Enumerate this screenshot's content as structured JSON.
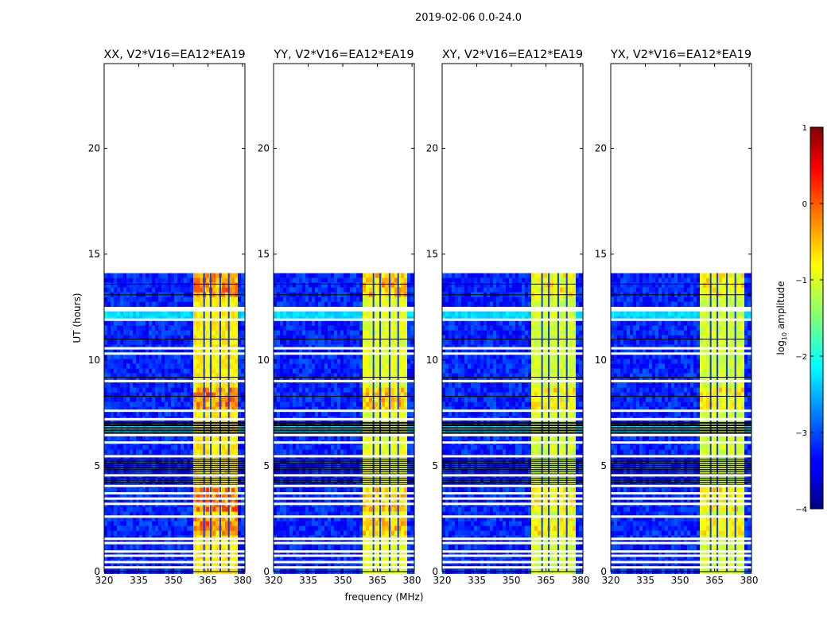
{
  "chart_data": {
    "type": "heatmap",
    "suptitle": "2019-02-06 0.0-24.0",
    "xlabel": "frequency (MHz)",
    "ylabel": "UT (hours)",
    "xlim": [
      320,
      381
    ],
    "ylim": [
      0,
      24
    ],
    "xticks": [
      320,
      335,
      350,
      365,
      380
    ],
    "yticks": [
      0,
      5,
      10,
      15,
      20
    ],
    "data_ut_range": [
      0,
      14.1
    ],
    "rfi_band_mhz": [
      358.5,
      377.5
    ],
    "rfi_channels_mhz": [
      363.3,
      366.2,
      370.3,
      374.0
    ],
    "flagged_ut_hours": [
      0.2,
      0.45,
      0.75,
      0.95,
      1.35,
      1.55,
      2.6,
      3.2,
      3.45,
      3.7,
      4.05,
      4.55,
      5.45,
      6.1,
      6.45,
      7.2,
      7.6,
      9.0,
      10.3,
      10.55,
      11.9,
      12.35,
      12.45
    ],
    "panels": [
      {
        "title": "XX, V2*V16=EA12*EA19",
        "band_level": -0.8,
        "hot_level": 0.1
      },
      {
        "title": "YY, V2*V16=EA12*EA19",
        "band_level": -1.0,
        "hot_level": -0.3
      },
      {
        "title": "XY, V2*V16=EA12*EA19",
        "band_level": -1.1,
        "hot_level": -0.6
      },
      {
        "title": "YX, V2*V16=EA12*EA19",
        "band_level": -1.1,
        "hot_level": -0.6
      }
    ],
    "colorbar": {
      "label": "log10 amplitude",
      "range": [
        -4,
        1
      ],
      "ticks": [
        1,
        0,
        -1,
        -2,
        -3,
        -4
      ],
      "colormap": "jet"
    }
  }
}
